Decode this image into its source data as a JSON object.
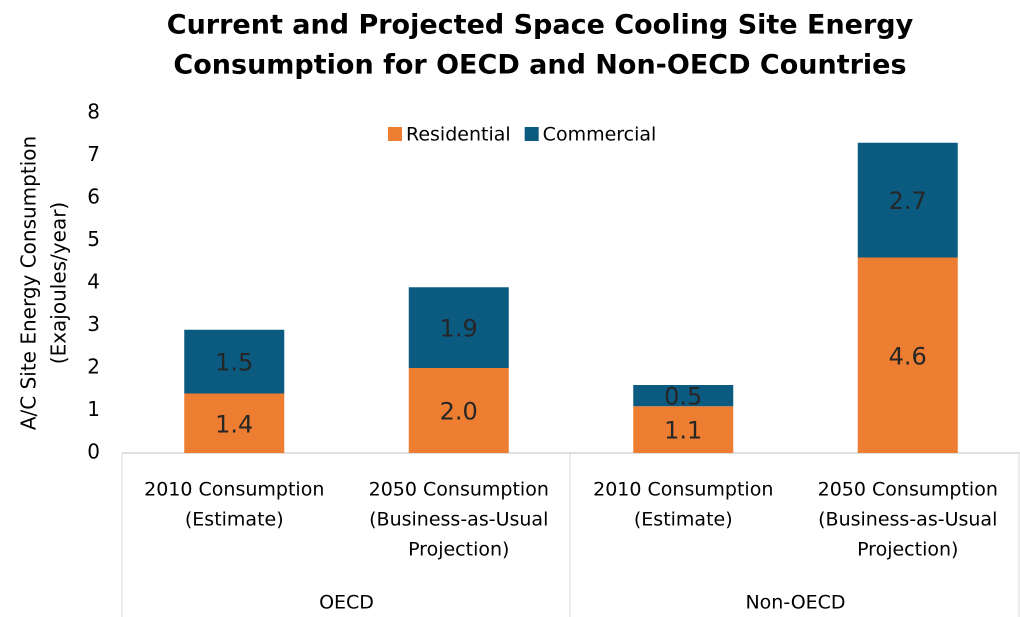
{
  "chart_data": {
    "type": "stacked-bar",
    "title": [
      "Current and Projected Space Cooling Site Energy",
      "Consumption for OECD and Non-OECD Countries"
    ],
    "y_label": [
      "A/C Site Energy Consumption",
      "(Exajoules/year)"
    ],
    "categories": [
      [
        "2010 Consumption",
        "(Estimate)"
      ],
      [
        "2050 Consumption",
        "(Business-as-Usual",
        "Projection)"
      ],
      [
        "2010 Consumption",
        "(Estimate)"
      ],
      [
        "2050 Consumption",
        "(Business-as-Usual",
        "Projection)"
      ]
    ],
    "groups": [
      "OECD",
      "Non-OECD"
    ],
    "series": [
      {
        "name": "Residential",
        "color": "#ED7D31",
        "values": [
          1.4,
          2.0,
          1.1,
          4.6
        ],
        "value_labels": [
          "1.4",
          "2.0",
          "1.1",
          "4.6"
        ]
      },
      {
        "name": "Commercial",
        "color": "#0B5A80",
        "values": [
          1.5,
          1.9,
          0.5,
          2.7
        ],
        "value_labels": [
          "1.5",
          "1.9",
          "0.5",
          "2.7"
        ]
      }
    ],
    "ylim": [
      0,
      8
    ],
    "yticks": [
      0,
      1,
      2,
      3,
      4,
      5,
      6,
      7,
      8
    ],
    "legend": "top"
  }
}
